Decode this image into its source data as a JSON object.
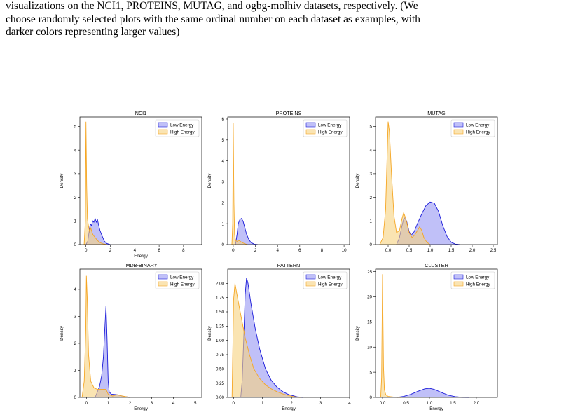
{
  "caption": {
    "lines": [
      "visualizations on the NCI1, PROTEINS, MUTAG, and ogbg-molhiv datasets, respectively. (We",
      "choose randomly selected plots with the same ordinal number on each dataset as examples, with",
      "darker colors representing larger values)"
    ]
  },
  "colors": {
    "low_fill": "#8c8cf2",
    "low_line": "#1a1ad9",
    "high_fill": "#f7d27e",
    "high_line": "#f5a623"
  },
  "chart_data": [
    {
      "type": "area",
      "title": "NCI1",
      "xlabel": "Energy",
      "ylabel": "Density",
      "xlim": [
        -0.5,
        9.5
      ],
      "ylim": [
        0,
        5.4
      ],
      "xticks": [
        0,
        2,
        4,
        6,
        8
      ],
      "xtick_labels": [
        "0",
        "2",
        "4",
        "6",
        "8"
      ],
      "yticks": [
        0,
        1,
        2,
        3,
        4,
        5
      ],
      "ytick_labels": [
        "0",
        "1",
        "2",
        "3",
        "4",
        "5"
      ],
      "legend": "top-right",
      "legend_entries": [
        "Low Energy",
        "High Energy"
      ],
      "series": [
        {
          "name": "Low Energy",
          "points": [
            [
              0,
              0
            ],
            [
              0.15,
              0.15
            ],
            [
              0.25,
              0.5
            ],
            [
              0.35,
              0.88
            ],
            [
              0.45,
              0.8
            ],
            [
              0.55,
              1.0
            ],
            [
              0.65,
              0.95
            ],
            [
              0.75,
              1.1
            ],
            [
              0.85,
              0.95
            ],
            [
              0.95,
              1.05
            ],
            [
              1.05,
              0.8
            ],
            [
              1.15,
              0.6
            ],
            [
              1.3,
              0.4
            ],
            [
              1.5,
              0.15
            ],
            [
              1.7,
              0.05
            ],
            [
              2.0,
              0
            ]
          ]
        },
        {
          "name": "High Energy",
          "points": [
            [
              -0.15,
              0
            ],
            [
              -0.05,
              1.0
            ],
            [
              0.0,
              5.2
            ],
            [
              0.06,
              2.5
            ],
            [
              0.12,
              1.1
            ],
            [
              0.2,
              0.8
            ],
            [
              0.3,
              0.55
            ],
            [
              0.4,
              0.7
            ],
            [
              0.5,
              0.5
            ],
            [
              0.6,
              0.4
            ],
            [
              0.75,
              0.3
            ],
            [
              0.9,
              0.2
            ],
            [
              1.1,
              0.1
            ],
            [
              1.4,
              0.03
            ],
            [
              1.7,
              0
            ]
          ]
        }
      ]
    },
    {
      "type": "area",
      "title": "PROTEINS",
      "xlabel": "",
      "ylabel": "Density",
      "xlim": [
        -0.5,
        10.5
      ],
      "ylim": [
        0,
        6.1
      ],
      "xticks": [
        0,
        2,
        4,
        6,
        8,
        10
      ],
      "xtick_labels": [
        "0",
        "2",
        "4",
        "6",
        "8",
        "10"
      ],
      "yticks": [
        0,
        1,
        2,
        3,
        4,
        5,
        6
      ],
      "ytick_labels": [
        "0",
        "1",
        "2",
        "3",
        "4",
        "5",
        "6"
      ],
      "legend": "top-right",
      "legend_entries": [
        "Low Energy",
        "High Energy"
      ],
      "series": [
        {
          "name": "Low Energy",
          "points": [
            [
              0.2,
              0
            ],
            [
              0.35,
              0.5
            ],
            [
              0.45,
              1.0
            ],
            [
              0.6,
              1.2
            ],
            [
              0.75,
              1.25
            ],
            [
              0.9,
              1.1
            ],
            [
              1.05,
              0.8
            ],
            [
              1.2,
              0.5
            ],
            [
              1.4,
              0.25
            ],
            [
              1.6,
              0.1
            ],
            [
              1.9,
              0.02
            ],
            [
              2.2,
              0
            ]
          ]
        },
        {
          "name": "High Energy",
          "points": [
            [
              -0.12,
              0
            ],
            [
              -0.05,
              1.0
            ],
            [
              0.0,
              5.8
            ],
            [
              0.06,
              2.0
            ],
            [
              0.12,
              0.5
            ],
            [
              0.2,
              0.2
            ],
            [
              0.35,
              0.15
            ],
            [
              0.5,
              0.2
            ],
            [
              0.65,
              0.15
            ],
            [
              0.8,
              0.1
            ],
            [
              1.0,
              0.05
            ],
            [
              1.3,
              0
            ]
          ]
        }
      ]
    },
    {
      "type": "area",
      "title": "MUTAG",
      "xlabel": "",
      "ylabel": "Density",
      "xlim": [
        -0.3,
        2.6
      ],
      "ylim": [
        0,
        5.4
      ],
      "xticks": [
        0,
        0.5,
        1.0,
        1.5,
        2.0,
        2.5
      ],
      "xtick_labels": [
        "0.0",
        "0.5",
        "1.0",
        "1.5",
        "2.0",
        "2.5"
      ],
      "yticks": [
        0,
        1,
        2,
        3,
        4,
        5
      ],
      "ytick_labels": [
        "0",
        "1",
        "2",
        "3",
        "4",
        "5"
      ],
      "legend": "top-right",
      "legend_entries": [
        "Low Energy",
        "High Energy"
      ],
      "series": [
        {
          "name": "Low Energy",
          "points": [
            [
              0.2,
              0
            ],
            [
              0.27,
              0.3
            ],
            [
              0.33,
              0.8
            ],
            [
              0.38,
              1.15
            ],
            [
              0.44,
              1.0
            ],
            [
              0.5,
              0.55
            ],
            [
              0.55,
              0.4
            ],
            [
              0.62,
              0.55
            ],
            [
              0.7,
              0.9
            ],
            [
              0.8,
              1.3
            ],
            [
              0.9,
              1.65
            ],
            [
              1.0,
              1.8
            ],
            [
              1.1,
              1.75
            ],
            [
              1.2,
              1.4
            ],
            [
              1.3,
              0.8
            ],
            [
              1.4,
              0.35
            ],
            [
              1.5,
              0.1
            ],
            [
              1.6,
              0.02
            ],
            [
              1.7,
              0
            ]
          ]
        },
        {
          "name": "High Energy",
          "points": [
            [
              -0.2,
              0
            ],
            [
              -0.12,
              0.3
            ],
            [
              -0.06,
              1.5
            ],
            [
              -0.02,
              4.0
            ],
            [
              0.0,
              5.2
            ],
            [
              0.03,
              4.8
            ],
            [
              0.08,
              3.0
            ],
            [
              0.14,
              1.2
            ],
            [
              0.2,
              0.5
            ],
            [
              0.27,
              0.6
            ],
            [
              0.33,
              1.1
            ],
            [
              0.37,
              1.35
            ],
            [
              0.42,
              1.1
            ],
            [
              0.5,
              0.5
            ],
            [
              0.57,
              0.3
            ],
            [
              0.63,
              0.4
            ],
            [
              0.7,
              0.6
            ],
            [
              0.75,
              0.75
            ],
            [
              0.8,
              0.6
            ],
            [
              0.85,
              0.3
            ],
            [
              0.92,
              0.1
            ],
            [
              1.0,
              0
            ]
          ]
        }
      ]
    },
    {
      "type": "area",
      "title": "IMDB-BINARY",
      "xlabel": "Energy",
      "ylabel": "Density",
      "xlim": [
        -0.3,
        5.3
      ],
      "ylim": [
        0,
        4.75
      ],
      "xticks": [
        0,
        1,
        2,
        3,
        4,
        5
      ],
      "xtick_labels": [
        "0",
        "1",
        "2",
        "3",
        "4",
        "5"
      ],
      "yticks": [
        0,
        1,
        2,
        3,
        4
      ],
      "ytick_labels": [
        "0",
        "1",
        "2",
        "3",
        "4"
      ],
      "legend": "top-right",
      "legend_entries": [
        "Low Energy",
        "High Energy"
      ],
      "series": [
        {
          "name": "Low Energy",
          "points": [
            [
              0.4,
              0
            ],
            [
              0.5,
              0.2
            ],
            [
              0.6,
              0.4
            ],
            [
              0.7,
              0.8
            ],
            [
              0.78,
              1.5
            ],
            [
              0.85,
              2.6
            ],
            [
              0.9,
              3.4
            ],
            [
              0.95,
              2.2
            ],
            [
              1.0,
              0.6
            ],
            [
              1.05,
              0.2
            ],
            [
              1.15,
              0.12
            ],
            [
              1.4,
              0.1
            ],
            [
              1.7,
              0.04
            ],
            [
              2.0,
              0
            ]
          ]
        },
        {
          "name": "High Energy",
          "points": [
            [
              -0.2,
              0
            ],
            [
              -0.1,
              0.6
            ],
            [
              -0.03,
              2.5
            ],
            [
              0.0,
              4.5
            ],
            [
              0.04,
              3.6
            ],
            [
              0.1,
              1.6
            ],
            [
              0.2,
              0.6
            ],
            [
              0.35,
              0.35
            ],
            [
              0.5,
              0.3
            ],
            [
              0.7,
              0.3
            ],
            [
              0.9,
              0.3
            ],
            [
              1.0,
              0.12
            ],
            [
              1.2,
              0.05
            ],
            [
              1.4,
              0.1
            ],
            [
              1.6,
              0.06
            ],
            [
              2.0,
              0
            ]
          ]
        }
      ]
    },
    {
      "type": "area",
      "title": "PATTERN",
      "xlabel": "Energy",
      "ylabel": "Density",
      "xlim": [
        -0.2,
        4.0
      ],
      "ylim": [
        0,
        2.25
      ],
      "xticks": [
        0,
        1,
        2,
        3,
        4
      ],
      "xtick_labels": [
        "0",
        "1",
        "2",
        "3",
        "4"
      ],
      "yticks": [
        0,
        0.25,
        0.5,
        0.75,
        1.0,
        1.25,
        1.5,
        1.75,
        2.0
      ],
      "ytick_labels": [
        "0.00",
        "0.25",
        "0.50",
        "0.75",
        "1.00",
        "1.25",
        "1.50",
        "1.75",
        "2.00"
      ],
      "legend": "top-right",
      "legend_entries": [
        "Low Energy",
        "High Energy"
      ],
      "series": [
        {
          "name": "Low Energy",
          "points": [
            [
              0.25,
              0
            ],
            [
              0.3,
              0.3
            ],
            [
              0.35,
              1.0
            ],
            [
              0.4,
              1.8
            ],
            [
              0.45,
              2.1
            ],
            [
              0.5,
              2.0
            ],
            [
              0.6,
              1.65
            ],
            [
              0.75,
              1.2
            ],
            [
              0.9,
              0.85
            ],
            [
              1.1,
              0.5
            ],
            [
              1.3,
              0.3
            ],
            [
              1.5,
              0.18
            ],
            [
              1.7,
              0.1
            ],
            [
              1.9,
              0.05
            ],
            [
              2.2,
              0.01
            ],
            [
              2.4,
              0
            ]
          ]
        },
        {
          "name": "High Energy",
          "points": [
            [
              -0.05,
              0
            ],
            [
              -0.02,
              1.0
            ],
            [
              0.0,
              1.7
            ],
            [
              0.05,
              2.0
            ],
            [
              0.12,
              1.8
            ],
            [
              0.25,
              1.45
            ],
            [
              0.4,
              1.05
            ],
            [
              0.55,
              0.75
            ],
            [
              0.7,
              0.5
            ],
            [
              0.9,
              0.33
            ],
            [
              1.1,
              0.22
            ],
            [
              1.3,
              0.15
            ],
            [
              1.5,
              0.1
            ],
            [
              1.7,
              0.06
            ],
            [
              2.0,
              0.02
            ],
            [
              2.3,
              0
            ]
          ]
        }
      ]
    },
    {
      "type": "area",
      "title": "CLUSTER",
      "xlabel": "Energy",
      "ylabel": "Density",
      "xlim": [
        -0.15,
        2.45
      ],
      "ylim": [
        0,
        25.5
      ],
      "xticks": [
        0,
        0.5,
        1.0,
        1.5,
        2.0
      ],
      "xtick_labels": [
        "0.0",
        "0.5",
        "1.0",
        "1.5",
        "2.0"
      ],
      "yticks": [
        0,
        5,
        10,
        15,
        20,
        25
      ],
      "ytick_labels": [
        "0",
        "5",
        "10",
        "15",
        "20",
        "25"
      ],
      "legend": "top-right",
      "legend_entries": [
        "Low Energy",
        "High Energy"
      ],
      "series": [
        {
          "name": "Low Energy",
          "points": [
            [
              0.3,
              0
            ],
            [
              0.45,
              0.2
            ],
            [
              0.6,
              0.6
            ],
            [
              0.75,
              1.2
            ],
            [
              0.9,
              1.7
            ],
            [
              1.0,
              1.8
            ],
            [
              1.1,
              1.6
            ],
            [
              1.25,
              1.0
            ],
            [
              1.4,
              0.45
            ],
            [
              1.55,
              0.15
            ],
            [
              1.7,
              0.03
            ],
            [
              1.85,
              0
            ]
          ]
        },
        {
          "name": "High Energy",
          "points": [
            [
              -0.04,
              0
            ],
            [
              -0.02,
              4.0
            ],
            [
              -0.01,
              15.0
            ],
            [
              0.0,
              24.5
            ],
            [
              0.01,
              15.0
            ],
            [
              0.02,
              6.0
            ],
            [
              0.04,
              1.5
            ],
            [
              0.07,
              0.5
            ],
            [
              0.12,
              0.2
            ],
            [
              0.25,
              0.05
            ],
            [
              0.4,
              0
            ]
          ]
        }
      ]
    }
  ]
}
